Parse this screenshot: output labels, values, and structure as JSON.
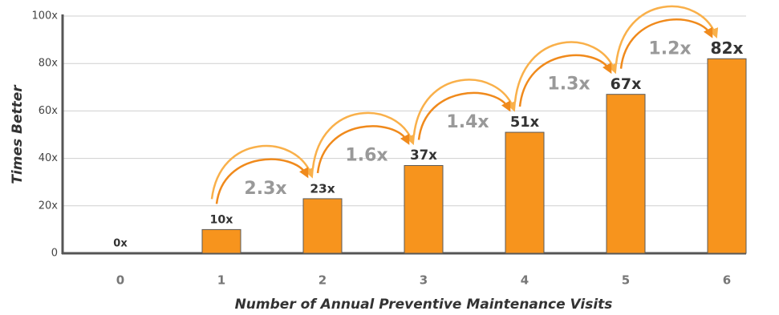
{
  "chart_data": {
    "type": "bar",
    "x_label": "Number of Annual Preventive Maintenance Visits",
    "y_label": "Times Better",
    "categories": [
      "0",
      "1",
      "2",
      "3",
      "4",
      "5",
      "6"
    ],
    "values": [
      0,
      10,
      23,
      37,
      51,
      67,
      82
    ],
    "value_labels": [
      "0x",
      "10x",
      "23x",
      "37x",
      "51x",
      "67x",
      "82x"
    ],
    "annotations": [
      "2.3x",
      "1.6x",
      "1.4x",
      "1.3x",
      "1.2x"
    ],
    "color": "#f7941d",
    "ylim": [
      0,
      100
    ],
    "yticks": [
      0,
      {
        "value": 20,
        "label": "20x"
      },
      {
        "value": 40,
        "label": "40x"
      },
      {
        "value": 60,
        "label": "60x"
      },
      {
        "value": 80,
        "label": "80x"
      },
      {
        "value": 100,
        "label": "100x"
      }
    ],
    "grid": true
  }
}
